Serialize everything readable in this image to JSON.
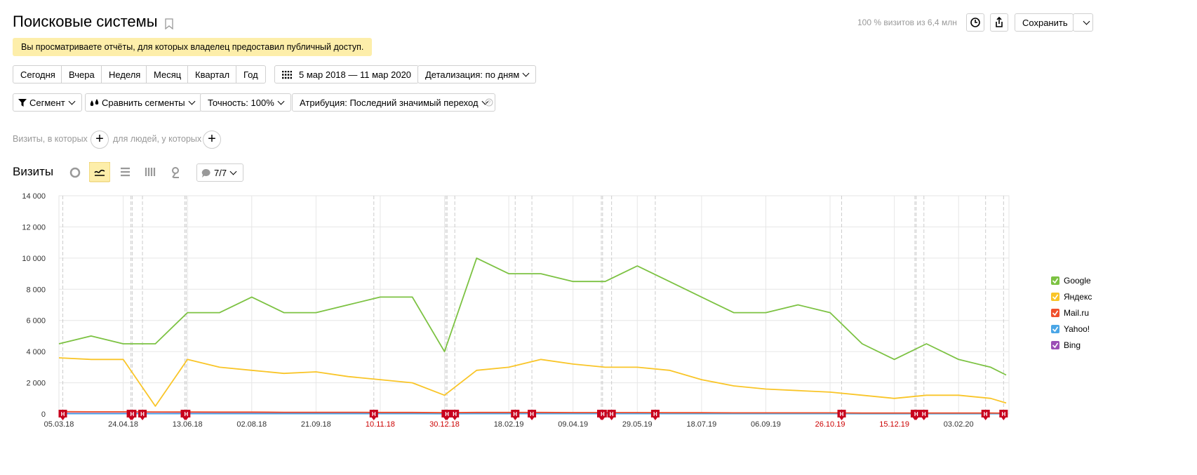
{
  "header": {
    "title": "Поисковые системы",
    "visits_share": "100 % визитов из 6,4 млн",
    "save": "Сохранить"
  },
  "notice": "Вы просматриваете отчёты, для которых владелец предоставил публичный доступ.",
  "periods": [
    "Сегодня",
    "Вчера",
    "Неделя",
    "Месяц",
    "Квартал",
    "Год"
  ],
  "date_range": "5 мар 2018 — 11 мар 2020",
  "detail": "Детализация: по дням",
  "filters": [
    "Сегмент",
    "Сравнить сегменты",
    "Точность: 100%",
    "Атрибуция: Последний значимый переход"
  ],
  "segment_builder": {
    "visits": "Визиты, в которых",
    "people": "для людей, у которых"
  },
  "metric": "Визиты",
  "annotations_toggle": "7/7",
  "chart_data": {
    "type": "line",
    "x": [
      "05.03.18",
      "30.03.18",
      "24.04.18",
      "19.05.18",
      "13.06.18",
      "08.07.18",
      "02.08.18",
      "27.08.18",
      "21.09.18",
      "16.10.18",
      "10.11.18",
      "05.12.18",
      "30.12.18",
      "24.01.19",
      "18.02.19",
      "15.03.19",
      "09.04.19",
      "04.05.19",
      "29.05.19",
      "23.06.19",
      "18.07.19",
      "12.08.19",
      "06.09.19",
      "01.10.19",
      "26.10.19",
      "20.11.19",
      "15.12.19",
      "09.01.20",
      "03.02.20",
      "28.02.20",
      "11.03.20"
    ],
    "xlim": [
      "05.03.18",
      "11.03.20"
    ],
    "xticks": [
      "05.03.18",
      "24.04.18",
      "13.06.18",
      "02.08.18",
      "21.09.18",
      "10.11.18",
      "30.12.18",
      "18.02.19",
      "09.04.19",
      "29.05.19",
      "18.07.19",
      "06.09.19",
      "26.10.19",
      "15.12.19",
      "03.02.20"
    ],
    "weekend_tick_color": "#cc0000",
    "ylim": [
      0,
      14000
    ],
    "yticks": [
      0,
      {
        "value": 2000,
        "label": "2 000"
      },
      {
        "value": 4000,
        "label": "4 000"
      },
      {
        "value": 6000,
        "label": "6 000"
      },
      {
        "value": 8000,
        "label": "8 000"
      },
      {
        "value": 10000,
        "label": "10 000"
      },
      {
        "value": 12000,
        "label": "12 000"
      },
      {
        "value": 14000,
        "label": "14 000"
      }
    ],
    "grid": true,
    "legend": "right",
    "series": [
      {
        "name": "Google",
        "color": "#7cc242",
        "values": [
          4500,
          5000,
          4500,
          4500,
          6500,
          6500,
          7500,
          6500,
          6500,
          7000,
          7500,
          7500,
          4000,
          10000,
          9000,
          9000,
          8500,
          8500,
          9500,
          8500,
          7500,
          6500,
          6500,
          7000,
          6500,
          4500,
          3500,
          4500,
          3500,
          3000,
          2500
        ]
      },
      {
        "name": "Яндекс",
        "color": "#f9c528",
        "values": [
          3600,
          3500,
          3500,
          500,
          3500,
          3000,
          2800,
          2600,
          2700,
          2400,
          2200,
          2000,
          1200,
          2800,
          3000,
          3500,
          3200,
          3000,
          3000,
          2800,
          2200,
          1800,
          1600,
          1500,
          1400,
          1200,
          1000,
          1200,
          1200,
          1000,
          700
        ]
      },
      {
        "name": "Mail.ru",
        "color": "#f0502c",
        "values": [
          150,
          140,
          140,
          130,
          130,
          120,
          120,
          110,
          110,
          110,
          100,
          100,
          80,
          100,
          100,
          100,
          90,
          90,
          90,
          80,
          80,
          70,
          70,
          70,
          70,
          60,
          60,
          60,
          60,
          60,
          50
        ]
      },
      {
        "name": "Yahoo!",
        "color": "#4aa6e6",
        "values": [
          20,
          20,
          20,
          20,
          20,
          20,
          20,
          20,
          20,
          20,
          20,
          20,
          15,
          20,
          20,
          20,
          20,
          20,
          20,
          20,
          20,
          20,
          20,
          20,
          20,
          15,
          15,
          15,
          15,
          15,
          15
        ]
      },
      {
        "name": "Bing",
        "color": "#9b4fb5",
        "values": [
          40,
          40,
          40,
          30,
          40,
          40,
          40,
          40,
          40,
          40,
          40,
          40,
          30,
          40,
          40,
          40,
          40,
          40,
          40,
          40,
          40,
          40,
          40,
          40,
          40,
          30,
          30,
          30,
          30,
          30,
          30
        ]
      }
    ],
    "holidays": {
      "label": "Н",
      "color": "#c8001e",
      "dates": [
        "08.03.18",
        "30.04.18",
        "01.05.18",
        "09.05.18",
        "11.06.18",
        "12.06.18",
        "05.11.18",
        "31.12.18",
        "01.01.19",
        "07.01.19",
        "23.02.19",
        "08.03.19",
        "01.05.19",
        "02.05.19",
        "09.05.19",
        "12.06.19",
        "04.11.19",
        "31.12.19",
        "01.01.20",
        "07.01.20",
        "24.02.20",
        "09.03.20"
      ]
    }
  }
}
